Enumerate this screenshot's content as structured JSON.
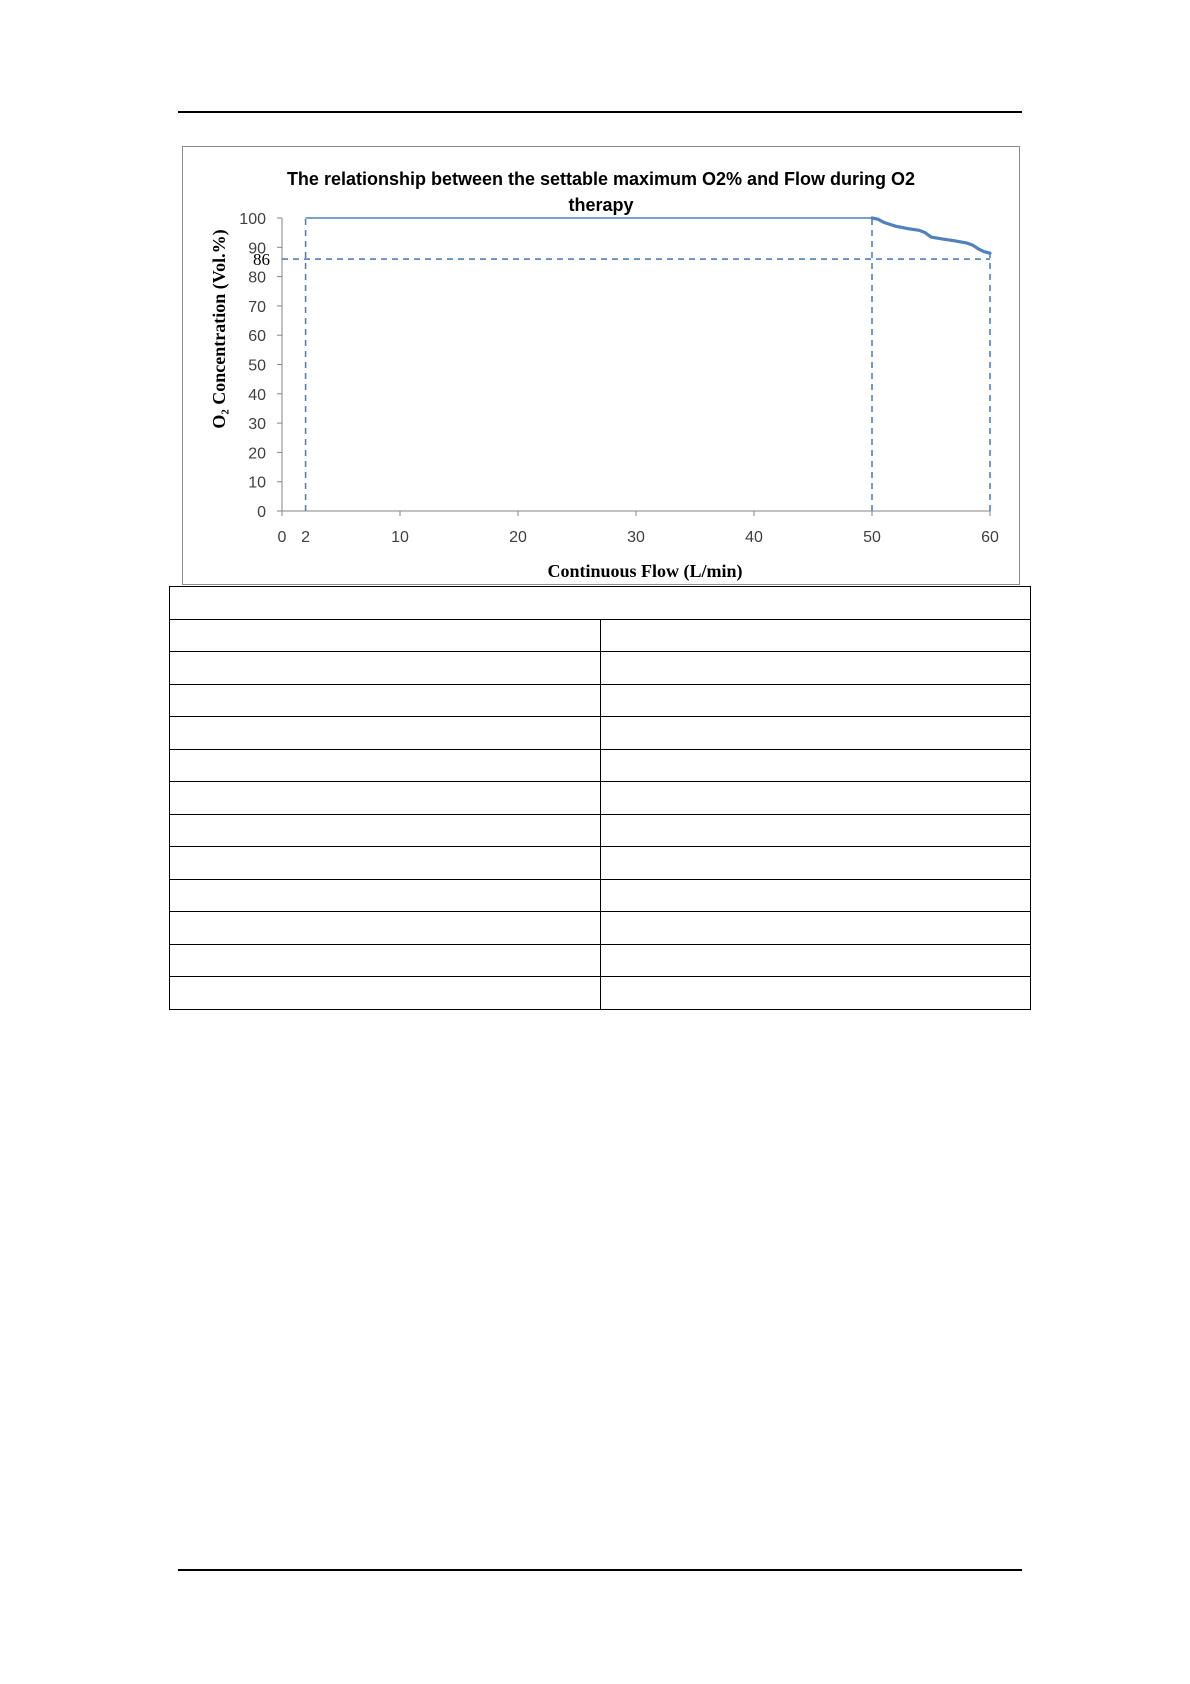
{
  "chart_data": {
    "type": "line",
    "title": "The relationship between the settable maximum O2% and Flow during O2 therapy",
    "title_lines": [
      "The relationship between the settable maximum O2% and Flow during O2",
      "therapy"
    ],
    "xlabel": "Continuous Flow (L/min)",
    "ylabel": "O₂ Concentration (Vol.%)",
    "xlim": [
      0,
      60
    ],
    "ylim": [
      0,
      100
    ],
    "x_ticks": [
      0,
      2,
      10,
      20,
      30,
      40,
      50,
      60
    ],
    "y_ticks": [
      0,
      10,
      20,
      30,
      40,
      50,
      60,
      70,
      80,
      90,
      100
    ],
    "y_extra_tick": 86,
    "grid": false,
    "series": [
      {
        "color": "#4f81bd",
        "points": [
          [
            2,
            100
          ],
          [
            50,
            100
          ],
          [
            50.5,
            99.6
          ],
          [
            51,
            98.5
          ],
          [
            52,
            97.2
          ],
          [
            53,
            96.4
          ],
          [
            54,
            95.8
          ],
          [
            54.5,
            95
          ],
          [
            55,
            93.5
          ],
          [
            56,
            92.8
          ],
          [
            57,
            92.2
          ],
          [
            58,
            91.5
          ],
          [
            58.5,
            90.8
          ],
          [
            59,
            89.5
          ],
          [
            59.5,
            88.5
          ],
          [
            60,
            88
          ]
        ]
      }
    ],
    "reference_lines": [
      {
        "type": "horizontal",
        "y": 86,
        "x_from": 0,
        "x_to": 60,
        "style": "dashed"
      },
      {
        "type": "vertical",
        "x": 2,
        "y_from": 0,
        "y_to": 100,
        "style": "dashed"
      },
      {
        "type": "vertical",
        "x": 50,
        "y_from": 0,
        "y_to": 100,
        "style": "dashed"
      },
      {
        "type": "vertical",
        "x": 60,
        "y_from": 0,
        "y_to": 88,
        "style": "dashed"
      }
    ]
  },
  "table": {
    "header_row": [
      ""
    ],
    "rows": [
      [
        "",
        ""
      ],
      [
        "",
        ""
      ],
      [
        "",
        ""
      ],
      [
        "",
        ""
      ],
      [
        "",
        ""
      ],
      [
        "",
        ""
      ],
      [
        "",
        ""
      ],
      [
        "",
        ""
      ],
      [
        "",
        ""
      ],
      [
        "",
        ""
      ],
      [
        "",
        ""
      ],
      [
        "",
        ""
      ]
    ]
  }
}
